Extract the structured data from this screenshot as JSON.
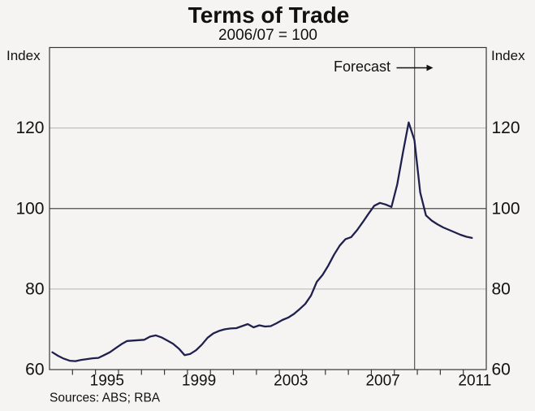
{
  "title": "Terms of Trade",
  "subtitle": "2006/07 = 100",
  "y_axis": {
    "unit_label": "Index",
    "ticks": [
      60,
      80,
      100,
      120
    ],
    "range": [
      60,
      140
    ],
    "base_gridline": 100,
    "light_gridlines": [
      80,
      120
    ]
  },
  "x_axis": {
    "labels": [
      "1995",
      "1999",
      "2003",
      "2007",
      "2011"
    ],
    "label_years": [
      1995,
      1999,
      2003,
      2007,
      2011
    ],
    "range": [
      1993,
      2012
    ],
    "minor_tick_years": [
      1994,
      1995,
      1996,
      1997,
      1998,
      1999,
      2000,
      2001,
      2002,
      2003,
      2004,
      2005,
      2006,
      2007,
      2008,
      2009,
      2010,
      2011
    ]
  },
  "annotation": {
    "forecast_label": "Forecast",
    "forecast_line_year": 2008.88
  },
  "footer": {
    "sources": "Sources: ABS; RBA"
  },
  "colors": {
    "background": "#f5f4f2",
    "line": "#20204e",
    "frame": "#373737",
    "grid_light": "#b3b3b3",
    "grid_base": "#4d4d4d",
    "forecast_divider": "#606060",
    "text": "#111111"
  },
  "chart_data": {
    "type": "line",
    "title": "Terms of Trade",
    "subtitle": "2006/07 = 100",
    "ylabel": "Index",
    "ylim": [
      60,
      140
    ],
    "xlim": [
      1993,
      2012
    ],
    "frequency": "quarterly",
    "legend": false,
    "grid": "horizontal",
    "forecast_divider_year": 2008.88,
    "series": [
      {
        "name": "Terms of trade (actual)",
        "start": "1993Q1",
        "values": [
          64.3,
          63.4,
          62.7,
          62.2,
          62.1,
          62.4,
          62.6,
          62.8,
          62.9,
          63.6,
          64.3,
          65.3,
          66.3,
          67.1,
          67.2,
          67.3,
          67.4,
          68.2,
          68.5,
          68.0,
          67.2,
          66.4,
          65.2,
          63.6,
          63.9,
          64.8,
          66.2,
          67.9,
          69.0,
          69.6,
          70.0,
          70.2,
          70.3,
          70.8,
          71.3,
          70.5,
          71.0,
          70.7,
          70.8,
          71.5,
          72.3,
          72.9,
          73.8,
          75.0,
          76.3,
          78.4,
          81.8,
          83.5,
          85.8,
          88.5,
          90.8,
          92.4,
          92.9,
          94.6,
          96.6,
          98.7,
          100.7,
          101.4,
          101.0,
          100.4,
          106.0,
          114.0,
          121.4
        ]
      },
      {
        "name": "Terms of trade (forecast)",
        "start": "2008Q4",
        "values": [
          117.0,
          104.0,
          98.3,
          97.0,
          96.1,
          95.3,
          94.7,
          94.1,
          93.5,
          93.0,
          92.7
        ]
      }
    ]
  }
}
